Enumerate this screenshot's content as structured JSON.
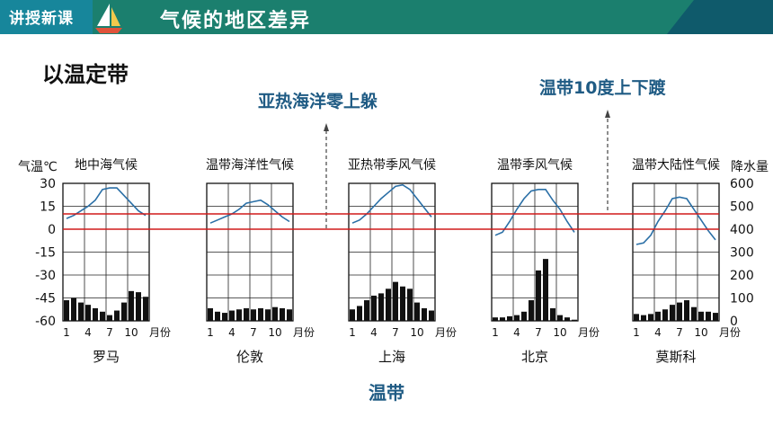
{
  "header": {
    "tag": "讲授新课",
    "title": "气候的地区差异"
  },
  "slide": {
    "heading": "以温定带",
    "annotation_left": "亚热海洋零上躲",
    "annotation_right": "温带10度上下踱",
    "footer_label": "温带"
  },
  "colors": {
    "header": "#1b7f6e",
    "tag": "#17869b",
    "accent_text": "#1f5b84",
    "ref_line": "#d11a1a",
    "temp_line": "#2a6fa6"
  },
  "chart_data": {
    "type": "climate_chart",
    "y_left": {
      "label": "气温℃",
      "ticks": [
        "30",
        "15",
        "0",
        "-15",
        "-30",
        "-45",
        "-60"
      ],
      "range": [
        -60,
        30
      ]
    },
    "y_right": {
      "label": "降水量",
      "ticks": [
        "600",
        "500",
        "400",
        "300",
        "200",
        "100",
        "0"
      ],
      "range": [
        0,
        600
      ]
    },
    "x_ticks": [
      "1",
      "4",
      "7",
      "10"
    ],
    "x_unit": "月份",
    "reference_lines_temperature": [
      10,
      0
    ],
    "charts": [
      {
        "title": "地中海气候",
        "city": "罗马",
        "temperature": [
          7,
          9,
          12,
          15,
          19,
          26,
          27,
          27,
          22,
          17,
          12,
          9
        ],
        "precipitation": [
          90,
          100,
          80,
          70,
          55,
          40,
          25,
          45,
          80,
          130,
          125,
          105
        ]
      },
      {
        "title": "温带海洋性气候",
        "city": "伦敦",
        "temperature": [
          4,
          6,
          8,
          10,
          13,
          17,
          18,
          19,
          16,
          12,
          8,
          5
        ],
        "precipitation": [
          55,
          40,
          35,
          45,
          50,
          55,
          50,
          55,
          50,
          60,
          55,
          50
        ]
      },
      {
        "title": "亚热带季风气候",
        "city": "上海",
        "temperature": [
          4,
          6,
          10,
          15,
          20,
          24,
          28,
          29,
          26,
          20,
          14,
          8
        ],
        "precipitation": [
          50,
          65,
          90,
          110,
          120,
          140,
          170,
          150,
          140,
          80,
          55,
          45
        ]
      },
      {
        "title": "温带季风气候",
        "city": "北京",
        "temperature": [
          -4,
          -2,
          5,
          13,
          20,
          25,
          26,
          26,
          19,
          13,
          5,
          -2
        ],
        "precipitation": [
          15,
          15,
          20,
          25,
          40,
          90,
          220,
          270,
          55,
          25,
          15,
          5
        ]
      },
      {
        "title": "温带大陆性气候",
        "city": "莫斯科",
        "temperature": [
          -10,
          -9,
          -4,
          5,
          12,
          20,
          21,
          20,
          13,
          6,
          -1,
          -7
        ],
        "precipitation": [
          30,
          25,
          30,
          40,
          50,
          70,
          80,
          90,
          60,
          40,
          40,
          35
        ]
      }
    ]
  }
}
